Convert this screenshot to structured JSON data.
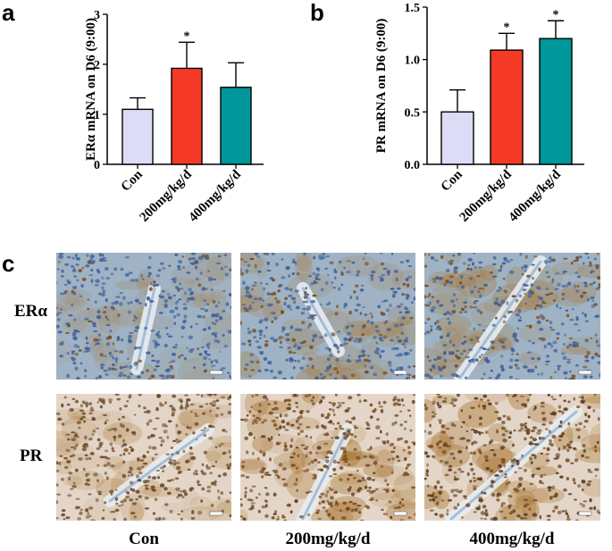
{
  "panels": {
    "a": "a",
    "b": "b",
    "c": "c"
  },
  "chart_data": [
    {
      "type": "bar",
      "panel": "a",
      "categories": [
        "Con",
        "200mg/kg/d",
        "400mg/kg/d"
      ],
      "values": [
        1.1,
        1.92,
        1.54
      ],
      "errors": [
        0.23,
        0.52,
        0.49
      ],
      "significance": [
        "",
        "*",
        ""
      ],
      "colors": [
        "#dcdcf6",
        "#f43a26",
        "#00979b"
      ],
      "ylabel": "ERα  mRNA on D6 (9:00)",
      "ylim": [
        0,
        3
      ],
      "yticks": [
        0,
        1,
        2,
        3
      ],
      "ytick_labels": [
        "0",
        "1",
        "2",
        "3"
      ],
      "grid": false
    },
    {
      "type": "bar",
      "panel": "b",
      "categories": [
        "Con",
        "200mg/kg/d",
        "400mg/kg/d"
      ],
      "values": [
        0.5,
        1.09,
        1.2
      ],
      "errors": [
        0.21,
        0.16,
        0.17
      ],
      "significance": [
        "",
        "*",
        "*"
      ],
      "colors": [
        "#dcdcf6",
        "#f43a26",
        "#00979b"
      ],
      "ylabel": "PR mRNA on D6 (9:00)",
      "ylim": [
        0,
        1.5
      ],
      "yticks": [
        0,
        0.5,
        1.0,
        1.5
      ],
      "ytick_labels": [
        "0.0",
        "0.5",
        "1.0",
        "1.5"
      ],
      "grid": false
    }
  ],
  "micrographs": {
    "row_labels": [
      "ERα",
      "PR"
    ],
    "column_labels": [
      "Con",
      "200mg/kg/d",
      "400mg/kg/d"
    ],
    "colors": {
      "er_background": "#9fb3c4",
      "pr_background": "#e3d6c8",
      "stain_brown": "#a8742e",
      "nucleus_blue": "#3f5f9a"
    }
  }
}
